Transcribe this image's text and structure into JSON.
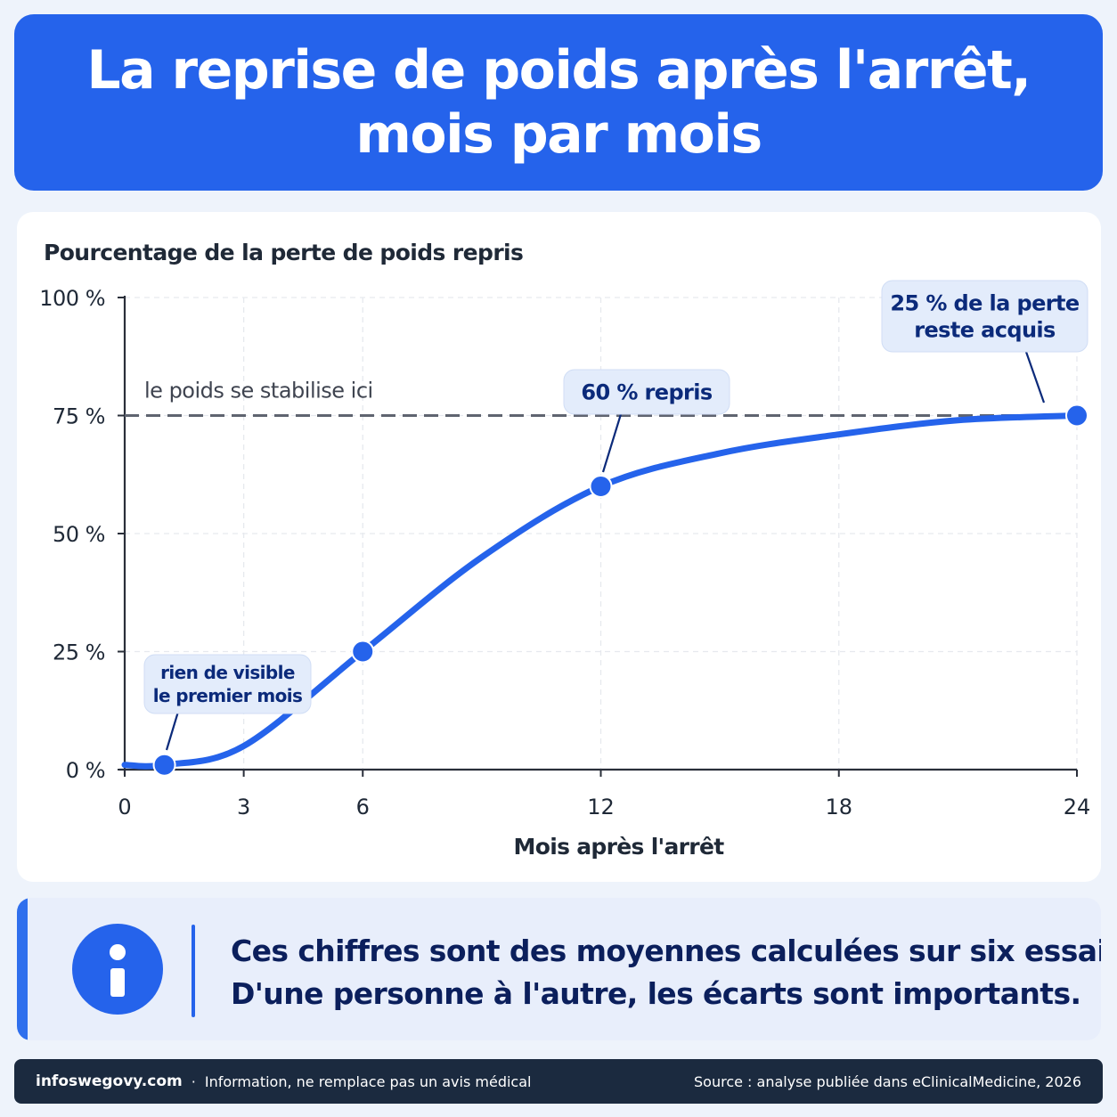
{
  "header": {
    "title_line1": "La reprise de poids après l'arrêt,",
    "title_line2": "mois par mois"
  },
  "chart_data": {
    "type": "line",
    "title": "Pourcentage de la perte de poids repris",
    "xlabel": "Mois après l'arrêt",
    "ylabel": "",
    "xlim": [
      0,
      24
    ],
    "ylim": [
      0,
      100
    ],
    "x_ticks": [
      0,
      3,
      6,
      12,
      18,
      24
    ],
    "x_tick_labels": [
      "0",
      "3",
      "6",
      "12",
      "18",
      "24"
    ],
    "y_ticks": [
      0,
      25,
      50,
      75,
      100
    ],
    "y_tick_labels": [
      "0 %",
      "25 %",
      "50 %",
      "75 %",
      "100 %"
    ],
    "grid": true,
    "series": [
      {
        "x": [
          0,
          1,
          3,
          6,
          9,
          12,
          15,
          18,
          21,
          24
        ],
        "values": [
          1,
          1,
          5,
          25,
          45,
          60,
          67,
          71,
          74,
          75
        ],
        "color": "#2563eb"
      }
    ],
    "highlight_points": [
      {
        "x": 1,
        "y": 1
      },
      {
        "x": 6,
        "y": 25
      },
      {
        "x": 12,
        "y": 60
      },
      {
        "x": 24,
        "y": 75
      }
    ],
    "reference_line": {
      "y": 75,
      "label": "le poids se stabilise ici",
      "color": "#5f6470"
    },
    "annotations": [
      {
        "lines": [
          "rien de visible",
          "le premier mois"
        ],
        "x": 1,
        "y": 1
      },
      {
        "lines": [
          "60 % repris"
        ],
        "x": 12,
        "y": 60
      },
      {
        "lines": [
          "25 % de la perte",
          "reste acquis"
        ],
        "x": 24,
        "y": 75
      }
    ]
  },
  "note": {
    "line1": "Ces chiffres sont des moyennes calculées sur six essais.",
    "line2": "D'une personne à l'autre, les écarts sont importants."
  },
  "footer": {
    "site": "infoswegovy.com",
    "separator": "·",
    "disclaimer": "Information, ne remplace pas un avis médical",
    "source": "Source : analyse publiée dans eClinicalMedicine, 2026"
  },
  "colors": {
    "accent": "#2563eb",
    "title_background": "#2563eb",
    "annotation_background": "#e3ecfb",
    "annotation_text": "#0b2a7a",
    "footer_background": "#1b2a3f"
  }
}
